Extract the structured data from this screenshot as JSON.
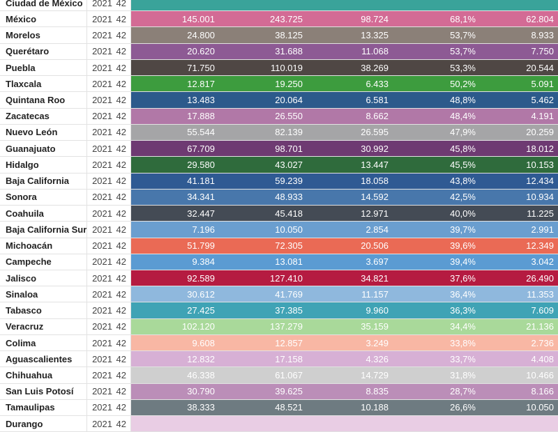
{
  "table": {
    "rows": [
      {
        "state": "Ciudad de México",
        "year": "2021",
        "week": "42",
        "v1": "",
        "v2": "",
        "v3": "",
        "pct": "",
        "v5": "",
        "color": "#3aa39a"
      },
      {
        "state": "México",
        "year": "2021",
        "week": "42",
        "v1": "145.001",
        "v2": "243.725",
        "v3": "98.724",
        "pct": "68,1%",
        "v5": "62.804",
        "color": "#d36b95"
      },
      {
        "state": "Morelos",
        "year": "2021",
        "week": "42",
        "v1": "24.800",
        "v2": "38.125",
        "v3": "13.325",
        "pct": "53,7%",
        "v5": "8.933",
        "color": "#8b8078"
      },
      {
        "state": "Querétaro",
        "year": "2021",
        "week": "42",
        "v1": "20.620",
        "v2": "31.688",
        "v3": "11.068",
        "pct": "53,7%",
        "v5": "7.750",
        "color": "#8d5a94"
      },
      {
        "state": "Puebla",
        "year": "2021",
        "week": "42",
        "v1": "71.750",
        "v2": "110.019",
        "v3": "38.269",
        "pct": "53,3%",
        "v5": "20.544",
        "color": "#4f4744"
      },
      {
        "state": "Tlaxcala",
        "year": "2021",
        "week": "42",
        "v1": "12.817",
        "v2": "19.250",
        "v3": "6.433",
        "pct": "50,2%",
        "v5": "5.091",
        "color": "#3d9c3e"
      },
      {
        "state": "Quintana Roo",
        "year": "2021",
        "week": "42",
        "v1": "13.483",
        "v2": "20.064",
        "v3": "6.581",
        "pct": "48,8%",
        "v5": "5.462",
        "color": "#2c5a8b"
      },
      {
        "state": "Zacatecas",
        "year": "2021",
        "week": "42",
        "v1": "17.888",
        "v2": "26.550",
        "v3": "8.662",
        "pct": "48,4%",
        "v5": "4.191",
        "color": "#b178a7"
      },
      {
        "state": "Nuevo León",
        "year": "2021",
        "week": "42",
        "v1": "55.544",
        "v2": "82.139",
        "v3": "26.595",
        "pct": "47,9%",
        "v5": "20.259",
        "color": "#a5a5a7"
      },
      {
        "state": "Guanajuato",
        "year": "2021",
        "week": "42",
        "v1": "67.709",
        "v2": "98.701",
        "v3": "30.992",
        "pct": "45,8%",
        "v5": "18.012",
        "color": "#6e3a72"
      },
      {
        "state": "Hidalgo",
        "year": "2021",
        "week": "42",
        "v1": "29.580",
        "v2": "43.027",
        "v3": "13.447",
        "pct": "45,5%",
        "v5": "10.153",
        "color": "#2f6b3c"
      },
      {
        "state": "Baja California",
        "year": "2021",
        "week": "42",
        "v1": "41.181",
        "v2": "59.239",
        "v3": "18.058",
        "pct": "43,8%",
        "v5": "12.434",
        "color": "#2f5a93"
      },
      {
        "state": "Sonora",
        "year": "2021",
        "week": "42",
        "v1": "34.341",
        "v2": "48.933",
        "v3": "14.592",
        "pct": "42,5%",
        "v5": "10.934",
        "color": "#4877ab"
      },
      {
        "state": "Coahuila",
        "year": "2021",
        "week": "42",
        "v1": "32.447",
        "v2": "45.418",
        "v3": "12.971",
        "pct": "40,0%",
        "v5": "11.225",
        "color": "#444b55"
      },
      {
        "state": "Baja California Sur",
        "year": "2021",
        "week": "42",
        "v1": "7.196",
        "v2": "10.050",
        "v3": "2.854",
        "pct": "39,7%",
        "v5": "2.991",
        "color": "#6a9ecf"
      },
      {
        "state": "Michoacán",
        "year": "2021",
        "week": "42",
        "v1": "51.799",
        "v2": "72.305",
        "v3": "20.506",
        "pct": "39,6%",
        "v5": "12.349",
        "color": "#ea6a55"
      },
      {
        "state": "Campeche",
        "year": "2021",
        "week": "42",
        "v1": "9.384",
        "v2": "13.081",
        "v3": "3.697",
        "pct": "39,4%",
        "v5": "3.042",
        "color": "#5b9bd2"
      },
      {
        "state": "Jalisco",
        "year": "2021",
        "week": "42",
        "v1": "92.589",
        "v2": "127.410",
        "v3": "34.821",
        "pct": "37,6%",
        "v5": "26.490",
        "color": "#b51b41"
      },
      {
        "state": "Sinaloa",
        "year": "2021",
        "week": "42",
        "v1": "30.612",
        "v2": "41.769",
        "v3": "11.157",
        "pct": "36,4%",
        "v5": "11.353",
        "color": "#8fb8dd"
      },
      {
        "state": "Tabasco",
        "year": "2021",
        "week": "42",
        "v1": "27.425",
        "v2": "37.385",
        "v3": "9.960",
        "pct": "36,3%",
        "v5": "7.609",
        "color": "#3fa3b5"
      },
      {
        "state": "Veracruz",
        "year": "2021",
        "week": "42",
        "v1": "102.120",
        "v2": "137.279",
        "v3": "35.159",
        "pct": "34,4%",
        "v5": "21.136",
        "color": "#a9d99a"
      },
      {
        "state": "Colima",
        "year": "2021",
        "week": "42",
        "v1": "9.608",
        "v2": "12.857",
        "v3": "3.249",
        "pct": "33,8%",
        "v5": "2.736",
        "color": "#f8b7a4"
      },
      {
        "state": "Aguascalientes",
        "year": "2021",
        "week": "42",
        "v1": "12.832",
        "v2": "17.158",
        "v3": "4.326",
        "pct": "33,7%",
        "v5": "4.408",
        "color": "#d7b0d5"
      },
      {
        "state": "Chihuahua",
        "year": "2021",
        "week": "42",
        "v1": "46.338",
        "v2": "61.067",
        "v3": "14.729",
        "pct": "31,8%",
        "v5": "10.466",
        "color": "#cfcfcf"
      },
      {
        "state": "San Luis Potosí",
        "year": "2021",
        "week": "42",
        "v1": "30.790",
        "v2": "39.625",
        "v3": "8.835",
        "pct": "28,7%",
        "v5": "8.166",
        "color": "#bb8eb8"
      },
      {
        "state": "Tamaulipas",
        "year": "2021",
        "week": "42",
        "v1": "38.333",
        "v2": "48.521",
        "v3": "10.188",
        "pct": "26,6%",
        "v5": "10.050",
        "color": "#6e7b81"
      },
      {
        "state": "Durango",
        "year": "2021",
        "week": "42",
        "v1": "",
        "v2": "",
        "v3": "",
        "pct": "",
        "v5": "",
        "color": "#e9cde4"
      }
    ]
  }
}
